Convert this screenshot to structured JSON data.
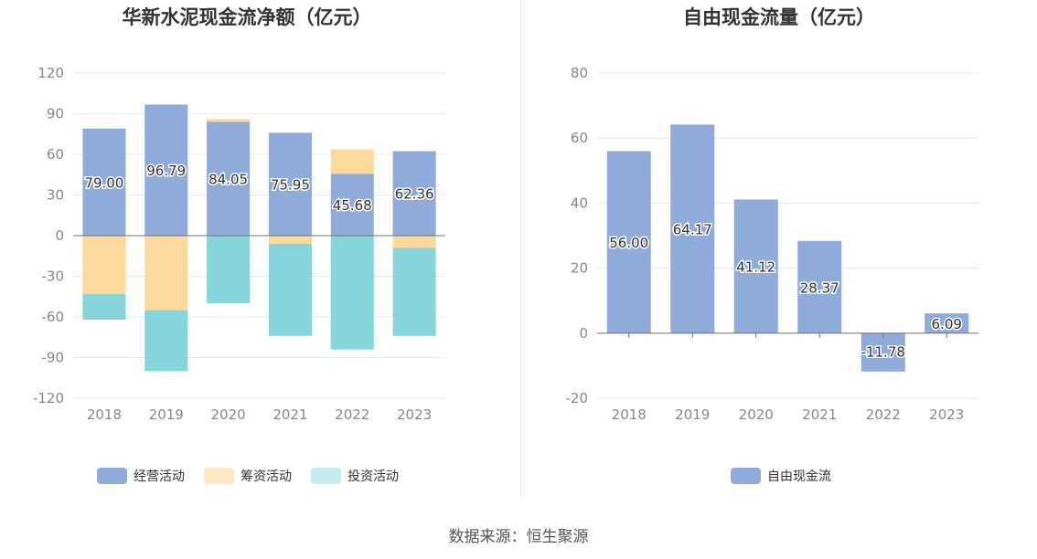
{
  "source_text": "数据来源：恒生聚源",
  "chart_data": [
    {
      "type": "bar",
      "stacked": true,
      "title": "华新水泥现金流净额（亿元）",
      "categories": [
        "2018",
        "2019",
        "2020",
        "2021",
        "2022",
        "2023"
      ],
      "ylim": [
        -120,
        120
      ],
      "yticks": [
        120,
        90,
        60,
        30,
        0,
        -30,
        -60,
        -90,
        -120
      ],
      "grid": true,
      "legend_position": "bottom",
      "series": [
        {
          "name": "经营活动",
          "color": "#8eabd9",
          "values": [
            79.0,
            96.79,
            84.05,
            75.95,
            45.68,
            62.36
          ],
          "labels": [
            "79.00",
            "96.79",
            "84.05",
            "75.95",
            "45.68",
            "62.36"
          ]
        },
        {
          "name": "筹资活动",
          "color": "#fdd99b",
          "values": [
            -43,
            -55,
            2,
            -6,
            18,
            -9
          ]
        },
        {
          "name": "投资活动",
          "color": "#86d5da",
          "values": [
            -19,
            -45,
            -50,
            -68,
            -84,
            -65
          ]
        }
      ],
      "legend_colors": [
        "#8eabd9",
        "#fde7c4",
        "#c4ebee"
      ]
    },
    {
      "type": "bar",
      "title": "自由现金流量（亿元）",
      "categories": [
        "2018",
        "2019",
        "2020",
        "2021",
        "2022",
        "2023"
      ],
      "ylim": [
        -20,
        80
      ],
      "yticks": [
        80,
        60,
        40,
        20,
        0,
        -20
      ],
      "grid": true,
      "legend_position": "bottom",
      "series": [
        {
          "name": "自由现金流",
          "color": "#8eabd9",
          "values": [
            56.0,
            64.17,
            41.12,
            28.37,
            -11.78,
            6.09
          ],
          "labels": [
            "56.00",
            "64.17",
            "41.12",
            "28.37",
            "-11.78",
            "6.09"
          ]
        }
      ],
      "legend_colors": [
        "#8eabd9"
      ]
    }
  ]
}
